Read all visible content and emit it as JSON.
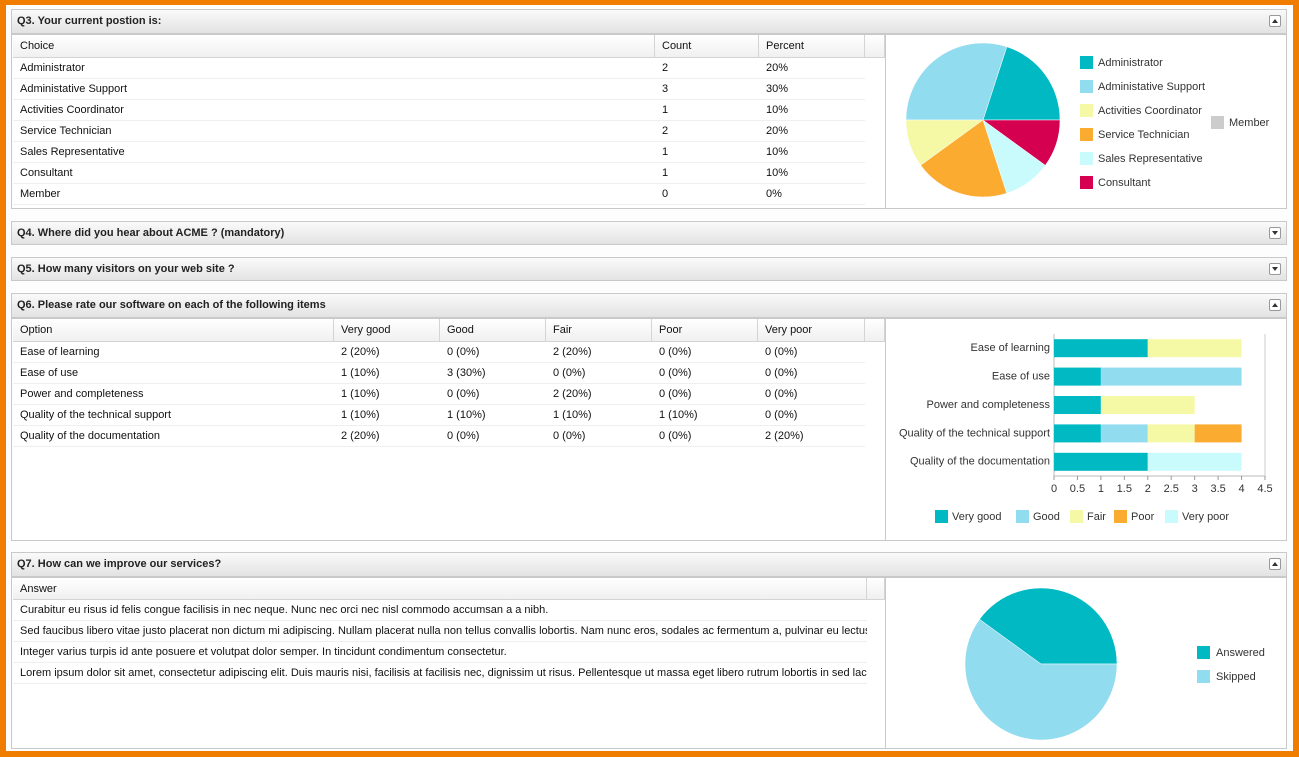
{
  "q3": {
    "title": "Q3. Your current postion is:",
    "table": {
      "columns": [
        "Choice",
        "Count",
        "Percent"
      ],
      "rows": [
        [
          "Administrator",
          2,
          "20%"
        ],
        [
          "Administative Support",
          3,
          "30%"
        ],
        [
          "Activities Coordinator",
          1,
          "10%"
        ],
        [
          "Service Technician",
          2,
          "20%"
        ],
        [
          "Sales Representative",
          1,
          "10%"
        ],
        [
          "Consultant",
          1,
          "10%"
        ],
        [
          "Member",
          0,
          "0%"
        ]
      ]
    },
    "chart": {
      "type": "pie",
      "colors": [
        "#00b9c3",
        "#92dcef",
        "#f5f9a6",
        "#fbab30",
        "#c9fbfd",
        "#d50050",
        "#cccccc"
      ]
    }
  },
  "q4": {
    "title": "Q4. Where did you hear about ACME ? (mandatory)"
  },
  "q5": {
    "title": "Q5. How many visitors on your web site ?"
  },
  "q6": {
    "title": "Q6. Please rate our software on each of the following items",
    "table": {
      "columns": [
        "Option",
        "Very good",
        "Good",
        "Fair",
        "Poor",
        "Very poor"
      ],
      "rows": [
        [
          "Ease of learning",
          "2 (20%)",
          "0 (0%)",
          "2 (20%)",
          "0 (0%)",
          "0 (0%)"
        ],
        [
          "Ease of use",
          "1 (10%)",
          "3 (30%)",
          "0 (0%)",
          "0 (0%)",
          "0 (0%)"
        ],
        [
          "Power and completeness",
          "1 (10%)",
          "0 (0%)",
          "2 (20%)",
          "0 (0%)",
          "0 (0%)"
        ],
        [
          "Quality of the technical support",
          "1 (10%)",
          "1 (10%)",
          "1 (10%)",
          "1 (10%)",
          "0 (0%)"
        ],
        [
          "Quality of the documentation",
          "2 (20%)",
          "0 (0%)",
          "0 (0%)",
          "0 (0%)",
          "2 (20%)"
        ]
      ]
    },
    "chart": {
      "type": "bar",
      "orientation": "horizontal",
      "stacked": true,
      "categories": [
        "Ease of learning",
        "Ease of use",
        "Power and completeness",
        "Quality of the technical support",
        "Quality of the documentation"
      ],
      "series": [
        {
          "name": "Very good",
          "color": "#00b9c3",
          "values": [
            2,
            1,
            1,
            1,
            2
          ]
        },
        {
          "name": "Good",
          "color": "#92dcef",
          "values": [
            0,
            3,
            0,
            1,
            0
          ]
        },
        {
          "name": "Fair",
          "color": "#f5f9a6",
          "values": [
            2,
            0,
            2,
            1,
            0
          ]
        },
        {
          "name": "Poor",
          "color": "#fbab30",
          "values": [
            0,
            0,
            0,
            1,
            0
          ]
        },
        {
          "name": "Very poor",
          "color": "#c9fbfd",
          "values": [
            0,
            0,
            0,
            0,
            2
          ]
        }
      ],
      "xlim": [
        0,
        4.5
      ],
      "xticks": [
        0,
        0.5,
        1,
        1.5,
        2,
        2.5,
        3,
        3.5,
        4,
        4.5
      ]
    }
  },
  "q7": {
    "title": "Q7. How can we improve our services?",
    "table": {
      "columns": [
        "Answer"
      ],
      "rows": [
        [
          "Curabitur eu risus id felis congue facilisis in nec neque. Nunc nec orci nec nisl commodo accumsan a a nibh."
        ],
        [
          "Sed faucibus libero vitae justo placerat non dictum mi adipiscing. Nullam placerat nulla non tellus convallis lobortis. Nam nunc eros, sodales ac fermentum a, pulvinar eu lectus."
        ],
        [
          "Integer varius turpis id ante posuere et volutpat dolor semper. In tincidunt condimentum consectetur."
        ],
        [
          "Lorem ipsum dolor sit amet, consectetur adipiscing elit. Duis mauris nisi, facilisis at facilisis nec, dignissim ut risus. Pellentesque ut massa eget libero rutrum lobortis in sed lac..."
        ]
      ]
    },
    "chart": {
      "type": "pie",
      "categories": [
        "Answered",
        "Skipped"
      ],
      "values": [
        4,
        6
      ],
      "colors": [
        "#00b9c3",
        "#92dcef"
      ]
    }
  }
}
